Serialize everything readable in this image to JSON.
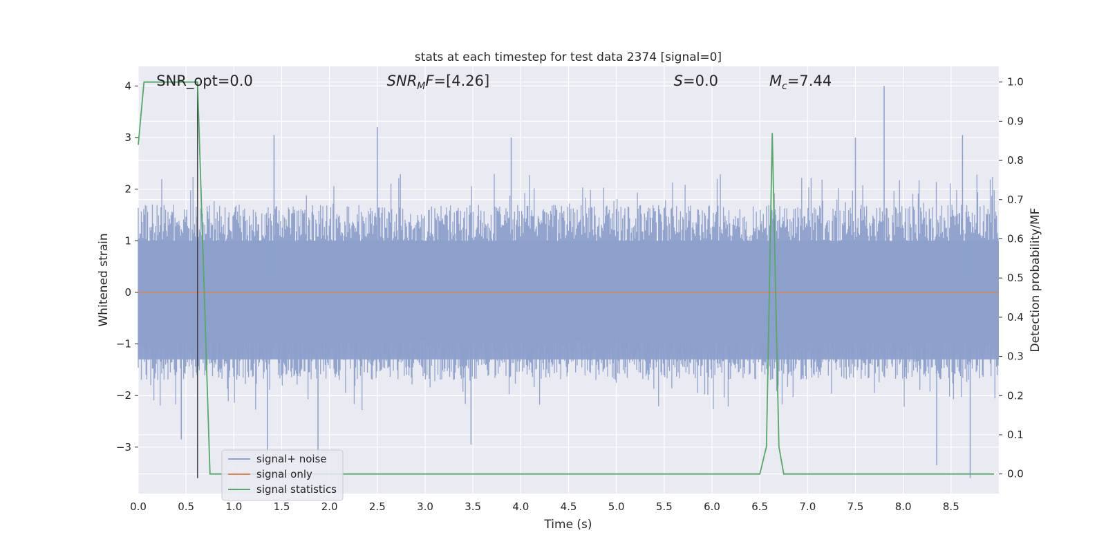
{
  "chart_data": {
    "type": "line",
    "title": "stats at each timestep for test data 2374 [signal=0]",
    "xlabel": "Time (s)",
    "ylabel_left": "Whitened strain",
    "ylabel_right": "Detection probability/MF",
    "xlim": [
      0.0,
      9.0
    ],
    "ylim_left": [
      -3.9,
      4.38
    ],
    "ylim_right": [
      -0.05,
      1.04
    ],
    "xticks": [
      0.0,
      0.5,
      1.0,
      1.5,
      2.0,
      2.5,
      3.0,
      3.5,
      4.0,
      4.5,
      5.0,
      5.5,
      6.0,
      6.5,
      7.0,
      7.5,
      8.0,
      8.5
    ],
    "xtick_labels": [
      "0.0",
      "0.5",
      "1.0",
      "1.5",
      "2.0",
      "2.5",
      "3.0",
      "3.5",
      "4.0",
      "4.5",
      "5.0",
      "5.5",
      "6.0",
      "6.5",
      "7.0",
      "7.5",
      "8.0",
      "8.5"
    ],
    "yticks_left": [
      -3,
      -2,
      -1,
      0,
      1,
      2,
      3,
      4
    ],
    "ytick_labels_left": [
      "−3",
      "−2",
      "−1",
      "0",
      "1",
      "2",
      "3",
      "4"
    ],
    "yticks_right": [
      0.0,
      0.1,
      0.2,
      0.3,
      0.4,
      0.5,
      0.6,
      0.7,
      0.8,
      0.9,
      1.0
    ],
    "ytick_labels_right": [
      "0.0",
      "0.1",
      "0.2",
      "0.3",
      "0.4",
      "0.5",
      "0.6",
      "0.7",
      "0.8",
      "0.9",
      "1.0"
    ],
    "grid": true,
    "legend_placement": "lower-left",
    "series": [
      {
        "name": "signal+ noise",
        "color": "#8da0cb",
        "axis": "left",
        "kind": "noise",
        "t_start": 0.0,
        "t_end": 9.0,
        "typical_envelope": 1.7,
        "peak_values": [
          {
            "x": 2.5,
            "y": 3.2
          },
          {
            "x": 1.42,
            "y": 3.05
          },
          {
            "x": 3.9,
            "y": 3.0
          },
          {
            "x": 7.8,
            "y": 4.0
          },
          {
            "x": 8.62,
            "y": 3.05
          },
          {
            "x": 7.5,
            "y": 3.0
          },
          {
            "x": 1.35,
            "y": -3.1
          },
          {
            "x": 1.88,
            "y": -3.2
          },
          {
            "x": 3.48,
            "y": -2.95
          },
          {
            "x": 8.35,
            "y": -3.35
          },
          {
            "x": 8.7,
            "y": -3.6
          },
          {
            "x": 0.45,
            "y": -2.85
          }
        ]
      },
      {
        "name": "signal only",
        "color": "#dd8452",
        "axis": "left",
        "x": [
          0.0,
          9.0
        ],
        "y": [
          0.0,
          0.0
        ]
      },
      {
        "name": "signal statistics",
        "color": "#55a868",
        "axis": "right",
        "x": [
          0.0,
          0.06,
          0.12,
          0.5,
          0.62,
          0.75,
          6.5,
          6.57,
          6.63,
          6.7,
          6.75,
          8.95
        ],
        "y": [
          0.84,
          1.0,
          1.0,
          1.0,
          1.0,
          0.0,
          0.0,
          0.07,
          0.87,
          0.07,
          0.0,
          0.0
        ]
      }
    ],
    "vline": {
      "x": 0.62,
      "y_from": -3.6,
      "y_to": 4.0,
      "color": "#444444"
    },
    "annotations": [
      {
        "text": "SNR_opt=0.0",
        "x": 0.19
      },
      {
        "text": "SNR_MF=[4.26]",
        "x": 2.6
      },
      {
        "text": "S=0.0",
        "x": 5.6
      },
      {
        "text": "M_c=7.44",
        "x": 6.6
      }
    ]
  }
}
